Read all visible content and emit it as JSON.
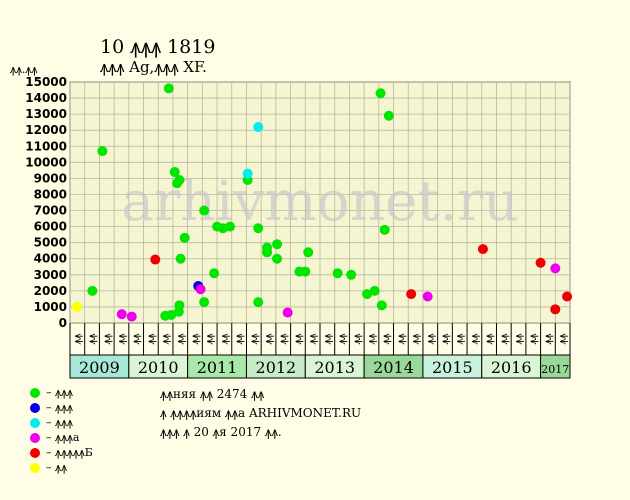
{
  "header": {
    "title": "10 ꙟꙟꙟ 1819",
    "subtitle": "ꙟꙟꙟ Ag,ꙟꙟꙟ XF.",
    "ylabel": "ꙟꙟ.ꙟꙟ"
  },
  "watermark": "arhivmonet.ru",
  "legend": [
    {
      "label": "– ꙟꙟꙟ",
      "color": "#00e600"
    },
    {
      "label": "– ꙟꙟꙟ",
      "color": "#0000ee"
    },
    {
      "label": "– ꙟꙟꙟ",
      "color": "#00eeee"
    },
    {
      "label": "– ꙟꙟꙟa",
      "color": "#ee00ee"
    },
    {
      "label": "– ꙟꙟꙟꙟꙟБ",
      "color": "#ee0000"
    },
    {
      "label": "– ꙟꙟ",
      "color": "#ffff00"
    }
  ],
  "note": {
    "line1": "ꙟꙟняя ꙟꙟ 2474 ꙟꙟ",
    "line2": "ꙟ ꙟꙟꙟꙟиям ꙟꙟa ARHIVMONET.RU",
    "line3": "ꙟꙟꙟ ꙟ 20 ꙟя 2017 ꙟꙟ."
  },
  "chart_data": {
    "type": "scatter",
    "ylim": [
      0,
      15000
    ],
    "yticks": [
      "0",
      "1000",
      "2000",
      "3000",
      "4000",
      "5000",
      "6000",
      "7000",
      "8000",
      "9000",
      "10000",
      "11000",
      "12000",
      "13000",
      "14000",
      "15000"
    ],
    "years": [
      "2009",
      "2010",
      "2011",
      "2012",
      "2013",
      "2014",
      "2015",
      "2016",
      "2017"
    ],
    "quarter_labels": [
      "ꙟꙟ",
      "ꙟꙟ",
      "ꙟꙟ",
      "ꙟꙟ"
    ],
    "x_range_years": [
      2009.0,
      2017.5
    ],
    "series": [
      {
        "color": "#ffff00",
        "points": [
          [
            2009.12,
            1000
          ]
        ]
      },
      {
        "color": "#00e600",
        "points": [
          [
            2009.38,
            2000
          ],
          [
            2009.55,
            10700
          ],
          [
            2010.62,
            450
          ],
          [
            2010.68,
            14600
          ],
          [
            2010.72,
            500
          ],
          [
            2010.78,
            9400
          ],
          [
            2010.82,
            8700
          ],
          [
            2010.86,
            8900
          ],
          [
            2010.88,
            4000
          ],
          [
            2010.85,
            700
          ],
          [
            2010.86,
            1100
          ],
          [
            2010.95,
            5300
          ],
          [
            2011.28,
            7000
          ],
          [
            2011.28,
            1300
          ],
          [
            2011.45,
            3100
          ],
          [
            2011.5,
            6000
          ],
          [
            2011.6,
            5900
          ],
          [
            2011.72,
            6000
          ],
          [
            2012.02,
            8900
          ],
          [
            2012.2,
            1300
          ],
          [
            2012.2,
            5900
          ],
          [
            2012.35,
            4700
          ],
          [
            2012.35,
            4400
          ],
          [
            2012.52,
            4900
          ],
          [
            2012.52,
            4000
          ],
          [
            2012.9,
            3200
          ],
          [
            2013.0,
            3200
          ],
          [
            2013.05,
            4400
          ],
          [
            2013.55,
            3100
          ],
          [
            2013.78,
            3000
          ],
          [
            2014.05,
            1800
          ],
          [
            2014.18,
            2000
          ],
          [
            2014.28,
            14300
          ],
          [
            2014.3,
            1100
          ],
          [
            2014.35,
            5800
          ],
          [
            2014.42,
            12900
          ]
        ]
      },
      {
        "color": "#0000ee",
        "points": [
          [
            2011.18,
            2300
          ]
        ]
      },
      {
        "color": "#00eeee",
        "points": [
          [
            2012.02,
            9300
          ],
          [
            2012.2,
            12200
          ]
        ]
      },
      {
        "color": "#ee00ee",
        "points": [
          [
            2009.88,
            550
          ],
          [
            2010.05,
            400
          ],
          [
            2011.22,
            2100
          ],
          [
            2012.7,
            650
          ],
          [
            2015.08,
            1650
          ],
          [
            2017.25,
            3400
          ]
        ]
      },
      {
        "color": "#ee0000",
        "points": [
          [
            2010.45,
            3950
          ],
          [
            2014.8,
            1800
          ],
          [
            2016.02,
            4600
          ],
          [
            2017.0,
            3750
          ],
          [
            2017.25,
            850
          ],
          [
            2017.45,
            1650
          ]
        ]
      }
    ]
  }
}
